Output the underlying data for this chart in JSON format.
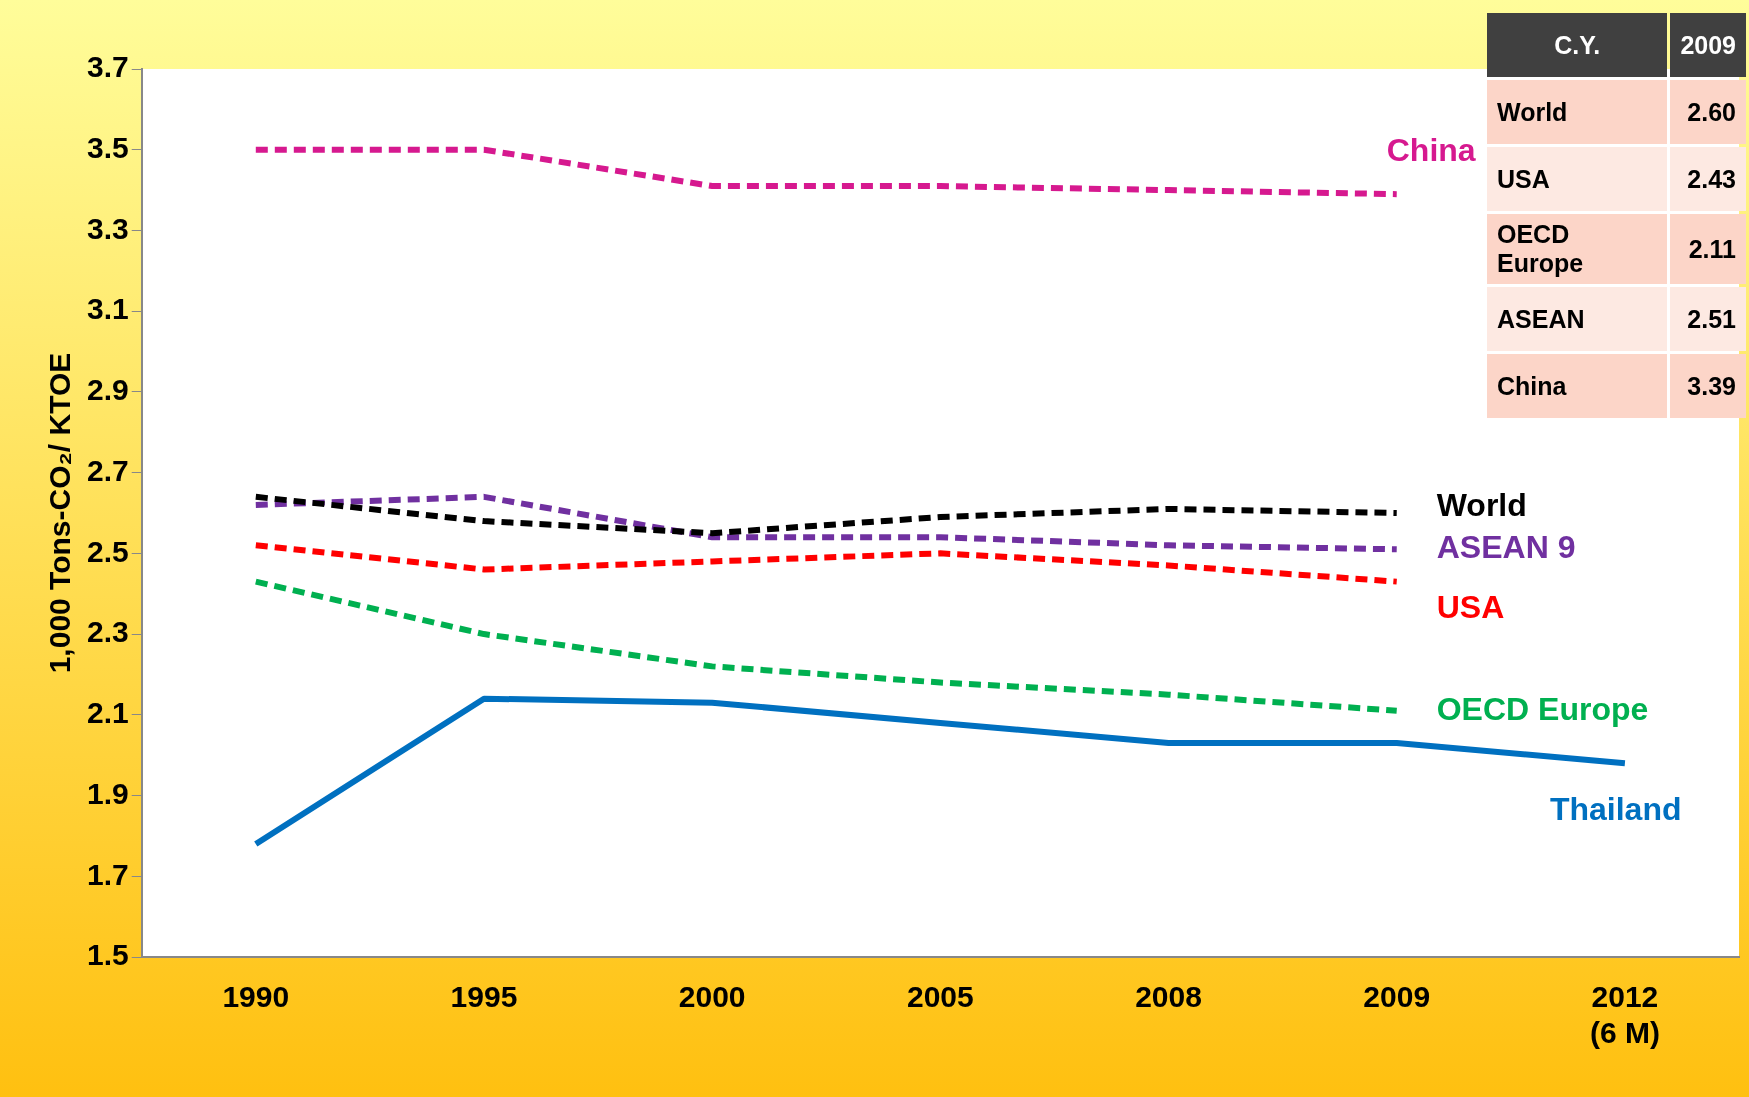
{
  "chart_data": {
    "type": "line",
    "ylabel": "1,000 Tons-CO₂/ KTOE",
    "categories": [
      "1990",
      "1995",
      "2000",
      "2005",
      "2008",
      "2009",
      "2012\n(6 M)"
    ],
    "ylim": [
      1.5,
      3.7
    ],
    "yticks": [
      1.5,
      1.7,
      1.9,
      2.1,
      2.3,
      2.5,
      2.7,
      2.9,
      3.1,
      3.3,
      3.5,
      3.7
    ],
    "grid": false,
    "legend": false,
    "marker": "none",
    "series": [
      {
        "name": "China",
        "color": "#d6198f",
        "line_style": "dashed",
        "values": [
          3.5,
          3.5,
          3.41,
          3.41,
          3.4,
          3.39,
          null
        ]
      },
      {
        "name": "World",
        "color": "#000000",
        "line_style": "dashed",
        "values": [
          2.64,
          2.58,
          2.55,
          2.59,
          2.61,
          2.6,
          null
        ]
      },
      {
        "name": "ASEAN 9",
        "color": "#7030a0",
        "line_style": "dashed",
        "values": [
          2.62,
          2.64,
          2.54,
          2.54,
          2.52,
          2.51,
          null
        ]
      },
      {
        "name": "USA",
        "color": "#ff0000",
        "line_style": "dashed",
        "values": [
          2.52,
          2.46,
          2.48,
          2.5,
          2.47,
          2.43,
          null
        ]
      },
      {
        "name": "OECD Europe",
        "color": "#00b050",
        "line_style": "dashed",
        "values": [
          2.43,
          2.3,
          2.22,
          2.18,
          2.15,
          2.11,
          null
        ]
      },
      {
        "name": "Thailand",
        "color": "#0070c0",
        "line_style": "solid",
        "values": [
          1.78,
          2.14,
          2.13,
          2.08,
          2.03,
          2.03,
          1.98
        ]
      }
    ],
    "annotations": [
      "C.Y.",
      "2009",
      "World",
      "2.60",
      "USA",
      "2.43",
      "OECD Europe",
      "2.11",
      "ASEAN",
      "2.51",
      "China",
      "3.39"
    ]
  }
}
